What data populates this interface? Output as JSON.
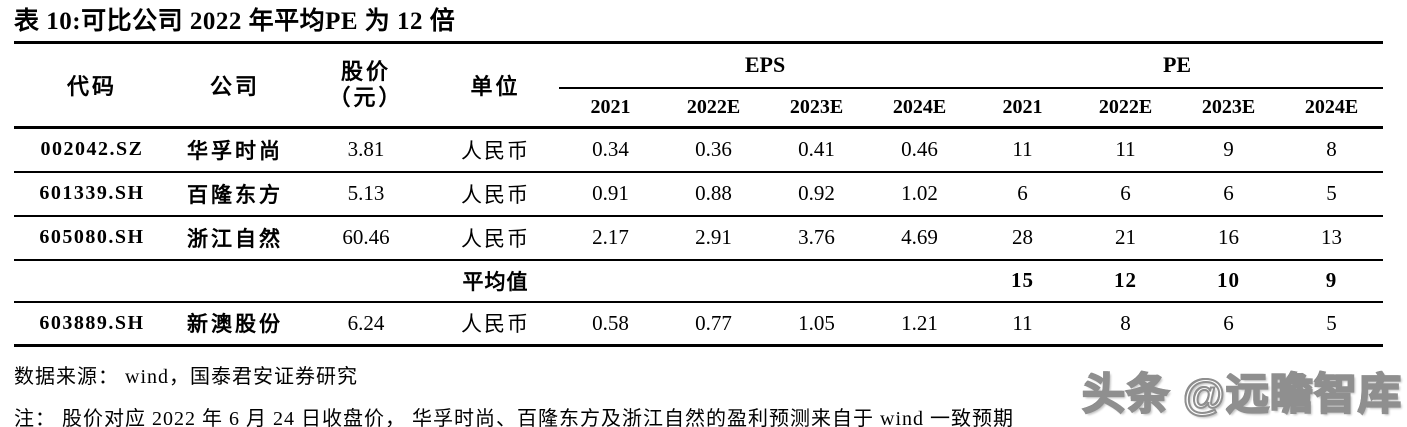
{
  "title": "表 10:可比公司 2022 年平均PE 为 12 倍",
  "table": {
    "headers": {
      "code": "代码",
      "company": "公司",
      "price_line1": "股价",
      "price_line2": "（元）",
      "unit": "单位",
      "eps_group": "EPS",
      "pe_group": "PE",
      "eps_years": [
        "2021",
        "2022E",
        "2023E",
        "2024E"
      ],
      "pe_years": [
        "2021",
        "2022E",
        "2023E",
        "2024E"
      ]
    },
    "rows": [
      {
        "code": "002042.SZ",
        "company": "华孚时尚",
        "price": "3.81",
        "unit": "人民币",
        "eps": [
          "0.34",
          "0.36",
          "0.41",
          "0.46"
        ],
        "pe": [
          "11",
          "11",
          "9",
          "8"
        ]
      },
      {
        "code": "601339.SH",
        "company": "百隆东方",
        "price": "5.13",
        "unit": "人民币",
        "eps": [
          "0.91",
          "0.88",
          "0.92",
          "1.02"
        ],
        "pe": [
          "6",
          "6",
          "6",
          "5"
        ]
      },
      {
        "code": "605080.SH",
        "company": "浙江自然",
        "price": "60.46",
        "unit": "人民币",
        "eps": [
          "2.17",
          "2.91",
          "3.76",
          "4.69"
        ],
        "pe": [
          "28",
          "21",
          "16",
          "13"
        ]
      },
      {
        "code": "",
        "company": "",
        "price": "",
        "unit": "平均值",
        "eps": [
          "",
          "",
          "",
          ""
        ],
        "pe": [
          "15",
          "12",
          "10",
          "9"
        ]
      },
      {
        "code": "603889.SH",
        "company": "新澳股份",
        "price": "6.24",
        "unit": "人民币",
        "eps": [
          "0.58",
          "0.77",
          "1.05",
          "1.21"
        ],
        "pe": [
          "11",
          "8",
          "6",
          "5"
        ]
      }
    ]
  },
  "footer": {
    "source": "数据来源： wind，国泰君安证券研究",
    "note": "注： 股价对应 2022 年 6 月 24 日收盘价， 华孚时尚、百隆东方及浙江自然的盈利预测来自于 wind 一致预期"
  },
  "watermark": "头条 @远瞻智库",
  "colors": {
    "text": "#000000",
    "background": "#ffffff",
    "watermark_gray": "#8f8f8f"
  }
}
